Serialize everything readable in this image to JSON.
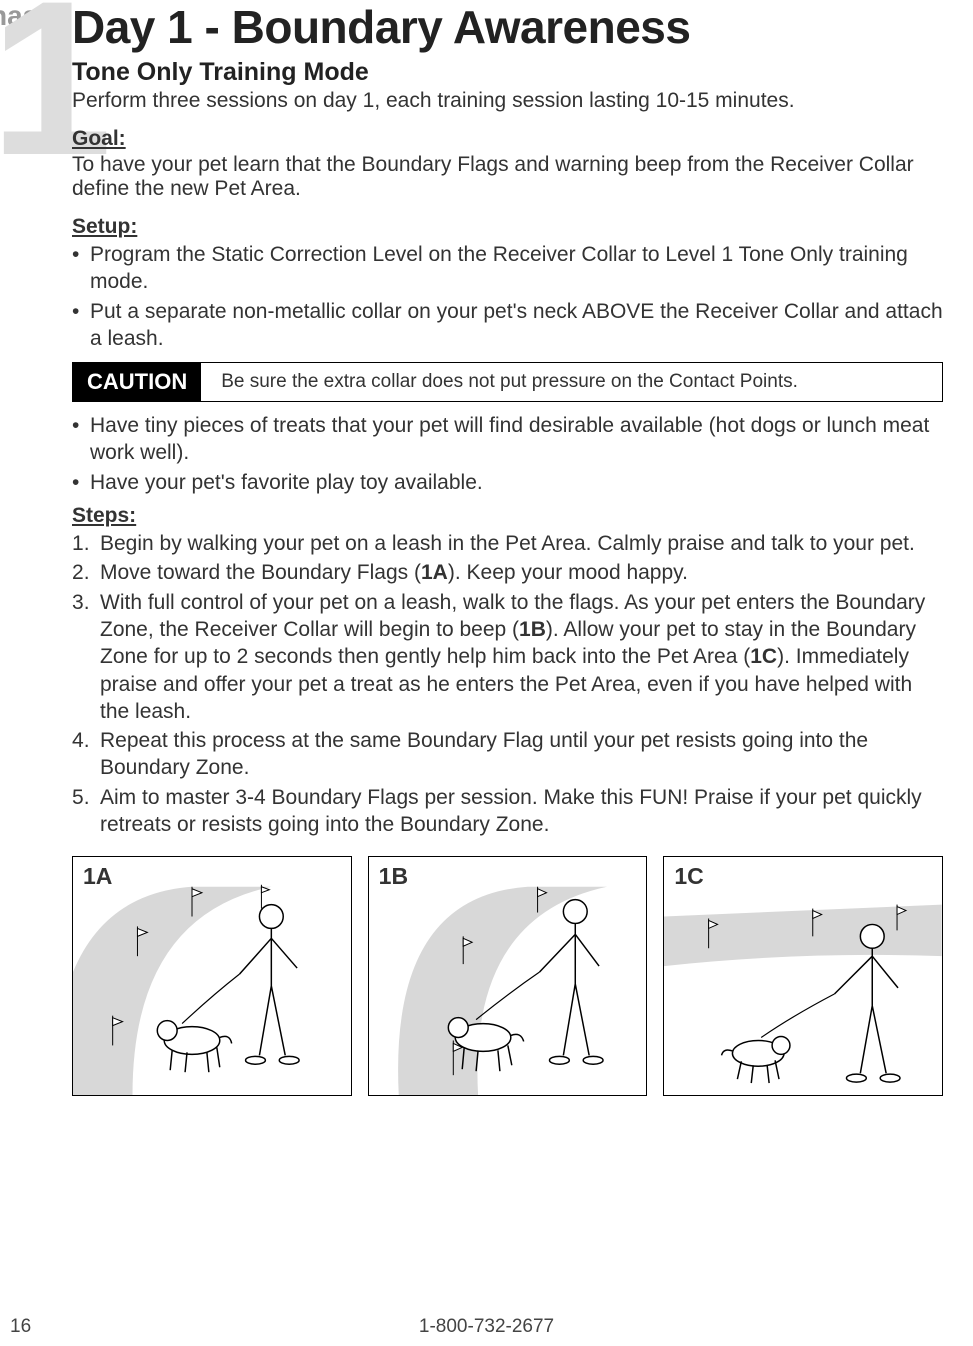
{
  "phase": {
    "label": "hase",
    "number": "1"
  },
  "title": "Day 1 - Boundary Awareness",
  "subtitle": "Tone Only Training Mode",
  "intro": "Perform three sessions on day 1, each training session lasting 10-15 minutes.",
  "goal": {
    "label": "Goal:",
    "text": "To have your pet learn that the Boundary Flags and warning beep from the Receiver Collar define the new Pet Area."
  },
  "setup": {
    "label": "Setup:",
    "items": [
      "Program the Static Correction Level on the Receiver Collar to Level 1 Tone Only training mode.",
      "Put a separate non-metallic collar on your pet's neck ABOVE the Receiver Collar and attach a leash."
    ],
    "post_caution_items": [
      "Have tiny pieces of treats that your pet will find desirable available (hot dogs or lunch meat work well).",
      "Have your pet's favorite play toy available."
    ]
  },
  "caution": {
    "badge": "CAUTION",
    "text": "Be sure the extra collar does not put pressure on the Contact Points."
  },
  "steps": {
    "label": "Steps:",
    "items": [
      {
        "text_parts": [
          "Begin by walking your pet on a leash in the Pet Area. Calmly praise and talk to your pet."
        ]
      },
      {
        "text_parts": [
          "Move toward the Boundary Flags (",
          {
            "bold": "1A"
          },
          "). Keep your mood happy."
        ]
      },
      {
        "text_parts": [
          "With full control of your pet on a leash, walk to the flags. As your pet enters the Boundary Zone, the Receiver Collar will begin to beep (",
          {
            "bold": "1B"
          },
          "). Allow your pet to stay in the Boundary Zone for up to 2 seconds then gently help him back into the Pet Area (",
          {
            "bold": "1C"
          },
          "). Immediately praise and offer your pet a treat as he enters the Pet Area, even if you have helped with the leash."
        ]
      },
      {
        "text_parts": [
          "Repeat this process at the same Boundary Flag until your pet resists going into the Boundary Zone."
        ]
      },
      {
        "text_parts": [
          "Aim to master 3-4 Boundary Flags per session. Make this FUN! Praise if your pet quickly retreats or resists going into the Boundary Zone."
        ]
      }
    ]
  },
  "figures": [
    {
      "label": "1A"
    },
    {
      "label": "1B"
    },
    {
      "label": "1C"
    }
  ],
  "footer": {
    "page": "16",
    "phone": "1-800-732-2677"
  },
  "colors": {
    "text": "#333333",
    "heading": "#222222",
    "phase_label": "#999999",
    "phase_number": "#dddddd",
    "border": "#000000",
    "caution_bg": "#000000",
    "caution_fg": "#ffffff",
    "background": "#ffffff",
    "boundary_zone": "#d8d8d8"
  },
  "typography": {
    "body_size": 21,
    "h1_size": 46,
    "h2_size": 25,
    "caution_badge_size": 22,
    "caution_text_size": 19,
    "figure_label_size": 23,
    "footer_size": 19,
    "phase_label_size": 28,
    "phase_number_size": 220
  }
}
